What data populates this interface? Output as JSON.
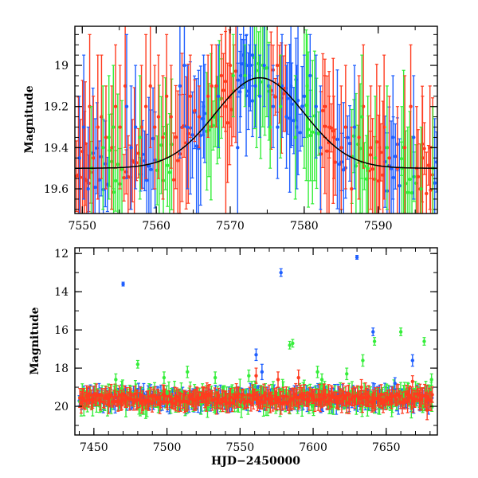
{
  "chart_data": [
    {
      "type": "scatter",
      "panel": "top",
      "title": "",
      "xlabel": "",
      "ylabel": "Magnitude",
      "xlim": [
        7549,
        7598
      ],
      "ylim": [
        19.72,
        18.81
      ],
      "y_inverted": true,
      "xticks": [
        "7550",
        "7560",
        "7570",
        "7580",
        "7590"
      ],
      "xtick_values": [
        7550,
        7560,
        7570,
        7580,
        7590
      ],
      "yticks": [
        "19",
        "19.2",
        "19.4",
        "19.6"
      ],
      "ytick_values": [
        19.0,
        19.2,
        19.4,
        19.6
      ],
      "grid": false,
      "legend": "none",
      "error_bars": true,
      "series": [
        {
          "color": "#ff3b1f",
          "points": [
            [
              7550.4,
              19.38,
              0.3
            ],
            [
              7551.0,
              19.2,
              0.35
            ],
            [
              7551.5,
              19.45,
              0.3
            ],
            [
              7552.1,
              19.3,
              0.35
            ],
            [
              7552.6,
              19.25,
              0.3
            ],
            [
              7553.2,
              19.35,
              0.25
            ],
            [
              7554.0,
              19.4,
              0.3
            ],
            [
              7554.5,
              19.2,
              0.3
            ],
            [
              7555.1,
              19.3,
              0.3
            ],
            [
              7555.8,
              19.1,
              0.3
            ],
            [
              7558.0,
              19.3,
              0.3
            ],
            [
              7558.6,
              19.2,
              0.35
            ],
            [
              7559.2,
              19.1,
              0.3
            ],
            [
              7559.8,
              19.3,
              0.3
            ],
            [
              7560.3,
              19.25,
              0.3
            ],
            [
              7560.9,
              19.35,
              0.3
            ],
            [
              7561.4,
              19.15,
              0.3
            ],
            [
              7562.0,
              19.25,
              0.25
            ],
            [
              7564.6,
              19.15,
              0.2
            ],
            [
              7565.2,
              19.22,
              0.15
            ],
            [
              7565.8,
              19.25,
              0.15
            ],
            [
              7567.0,
              19.15,
              0.2
            ],
            [
              7567.5,
              19.1,
              0.2
            ],
            [
              7568.1,
              19.1,
              0.2
            ],
            [
              7568.8,
              19.05,
              0.2
            ],
            [
              7569.4,
              19.2,
              0.6
            ],
            [
              7570.0,
              19.0,
              0.3
            ],
            [
              7582.8,
              19.2,
              0.15
            ],
            [
              7583.4,
              19.3,
              0.15
            ],
            [
              7584.0,
              19.35,
              0.2
            ],
            [
              7585.0,
              19.4,
              0.3
            ],
            [
              7585.6,
              19.3,
              0.3
            ],
            [
              7586.4,
              19.6,
              0.3
            ],
            [
              7587.4,
              19.35,
              0.3
            ],
            [
              7588.0,
              19.2,
              0.3
            ],
            [
              7589.0,
              19.4,
              0.3
            ],
            [
              7590.2,
              19.4,
              0.3
            ],
            [
              7590.8,
              19.3,
              0.35
            ],
            [
              7591.5,
              19.45,
              0.3
            ],
            [
              7592.6,
              19.5,
              0.3
            ],
            [
              7593.6,
              19.4,
              0.35
            ],
            [
              7594.4,
              19.2,
              0.3
            ],
            [
              7595.2,
              19.5,
              0.3
            ],
            [
              7596.0,
              19.45,
              0.3
            ],
            [
              7597.0,
              19.4,
              0.3
            ]
          ]
        },
        {
          "color": "#1f5fff",
          "points": [
            [
              7549.6,
              19.45,
              0.3
            ],
            [
              7550.2,
              19.3,
              0.35
            ],
            [
              7550.8,
              19.6,
              0.3
            ],
            [
              7556.0,
              19.2,
              0.35
            ],
            [
              7556.6,
              19.4,
              0.3
            ],
            [
              7557.2,
              19.3,
              0.3
            ],
            [
              7563.2,
              19.1,
              0.35
            ],
            [
              7563.8,
              19.0,
              0.3
            ],
            [
              7564.2,
              19.3,
              0.3
            ],
            [
              7566.4,
              19.2,
              0.25
            ],
            [
              7568.4,
              19.15,
              0.25
            ],
            [
              7571.0,
              19.4,
              0.6
            ],
            [
              7571.4,
              19.05,
              0.2
            ],
            [
              7571.8,
              18.95,
              0.15
            ],
            [
              7572.2,
              19.0,
              0.15
            ],
            [
              7572.6,
              19.05,
              0.15
            ],
            [
              7573.0,
              18.95,
              0.15
            ],
            [
              7573.4,
              19.1,
              0.2
            ],
            [
              7574.0,
              19.15,
              0.2
            ],
            [
              7574.6,
              19.0,
              0.2
            ],
            [
              7575.2,
              19.1,
              0.2
            ],
            [
              7575.8,
              19.2,
              0.2
            ],
            [
              7576.4,
              19.3,
              0.25
            ],
            [
              7577.0,
              19.1,
              0.25
            ],
            [
              7577.6,
              19.25,
              0.25
            ],
            [
              7578.2,
              19.1,
              0.3
            ],
            [
              7579.0,
              19.3,
              0.3
            ],
            [
              7580.0,
              19.15,
              0.2
            ],
            [
              7580.8,
              19.05,
              0.2
            ],
            [
              7581.6,
              19.2,
              0.25
            ],
            [
              7582.2,
              19.4,
              0.3
            ],
            [
              7586.8,
              19.3,
              0.3
            ],
            [
              7592.0,
              19.35,
              0.3
            ],
            [
              7594.8,
              19.35,
              0.3
            ]
          ]
        },
        {
          "color": "#35ee3a",
          "points": [
            [
              7551.2,
              19.5,
              0.3
            ],
            [
              7552.8,
              19.4,
              0.3
            ],
            [
              7553.6,
              19.35,
              0.3
            ],
            [
              7554.2,
              19.3,
              0.3
            ],
            [
              7557.8,
              19.35,
              0.3
            ],
            [
              7570.4,
              19.05,
              0.2
            ],
            [
              7572.0,
              19.05,
              0.15
            ],
            [
              7575.4,
              19.3,
              0.2
            ],
            [
              7576.8,
              19.2,
              0.25
            ],
            [
              7578.8,
              19.35,
              0.3
            ],
            [
              7580.4,
              19.1,
              0.25
            ],
            [
              7587.8,
              19.25,
              0.3
            ],
            [
              7588.6,
              19.5,
              0.35
            ],
            [
              7589.6,
              19.45,
              0.3
            ],
            [
              7591.2,
              19.4,
              0.3
            ],
            [
              7593.2,
              19.5,
              0.3
            ],
            [
              7595.8,
              19.6,
              0.3
            ],
            [
              7597.4,
              19.5,
              0.3
            ]
          ]
        }
      ],
      "model_curve": {
        "color": "#000000",
        "peak_x": 7574,
        "peak_mag": 19.06,
        "base_mag": 19.5,
        "width": 8.5
      }
    },
    {
      "type": "scatter",
      "panel": "bottom",
      "title": "",
      "xlabel": "HJD−2450000",
      "ylabel": "Magnitude",
      "xlim": [
        7437,
        7685
      ],
      "ylim": [
        21.5,
        11.7
      ],
      "y_inverted": true,
      "xticks": [
        "7450",
        "7500",
        "7550",
        "7600",
        "7650"
      ],
      "xtick_values": [
        7450,
        7500,
        7550,
        7600,
        7650
      ],
      "yticks": [
        "12",
        "14",
        "16",
        "18",
        "20"
      ],
      "ytick_values": [
        12,
        14,
        16,
        18,
        20
      ],
      "grid": false,
      "legend": "none",
      "error_bars": true,
      "baseline": {
        "x_start": 7440,
        "x_end": 7682,
        "mag": 19.6
      },
      "series": [
        {
          "color": "#ff3b1f",
          "points": [
            [
              7561,
              18.4,
              0.4
            ],
            [
              7576,
              18.6,
              0.4
            ],
            [
              7590,
              18.5,
              0.4
            ],
            [
              7633,
              19.0,
              0.4
            ],
            [
              7668,
              18.7,
              0.3
            ],
            [
              7678,
              20.2,
              0.5
            ]
          ]
        },
        {
          "color": "#1f5fff",
          "points": [
            [
              7470,
              13.6,
              0.1
            ],
            [
              7578,
              13.0,
              0.2
            ],
            [
              7630,
              12.2,
              0.1
            ],
            [
              7641,
              16.1,
              0.2
            ],
            [
              7656,
              18.8,
              0.3
            ],
            [
              7668,
              17.6,
              0.3
            ],
            [
              7561,
              17.3,
              0.3
            ],
            [
              7565,
              18.2,
              0.4
            ]
          ]
        },
        {
          "color": "#35ee3a",
          "points": [
            [
              7465,
              18.6,
              0.3
            ],
            [
              7480,
              17.8,
              0.2
            ],
            [
              7498,
              18.5,
              0.3
            ],
            [
              7514,
              18.2,
              0.3
            ],
            [
              7533,
              18.5,
              0.3
            ],
            [
              7556,
              18.4,
              0.3
            ],
            [
              7584,
              16.8,
              0.2
            ],
            [
              7586,
              16.7,
              0.2
            ],
            [
              7603,
              18.2,
              0.3
            ],
            [
              7606,
              18.6,
              0.3
            ],
            [
              7623,
              18.3,
              0.3
            ],
            [
              7634,
              17.6,
              0.3
            ],
            [
              7642,
              16.6,
              0.2
            ],
            [
              7660,
              16.1,
              0.2
            ],
            [
              7676,
              16.6,
              0.2
            ],
            [
              7681,
              18.6,
              0.3
            ]
          ]
        }
      ]
    }
  ]
}
